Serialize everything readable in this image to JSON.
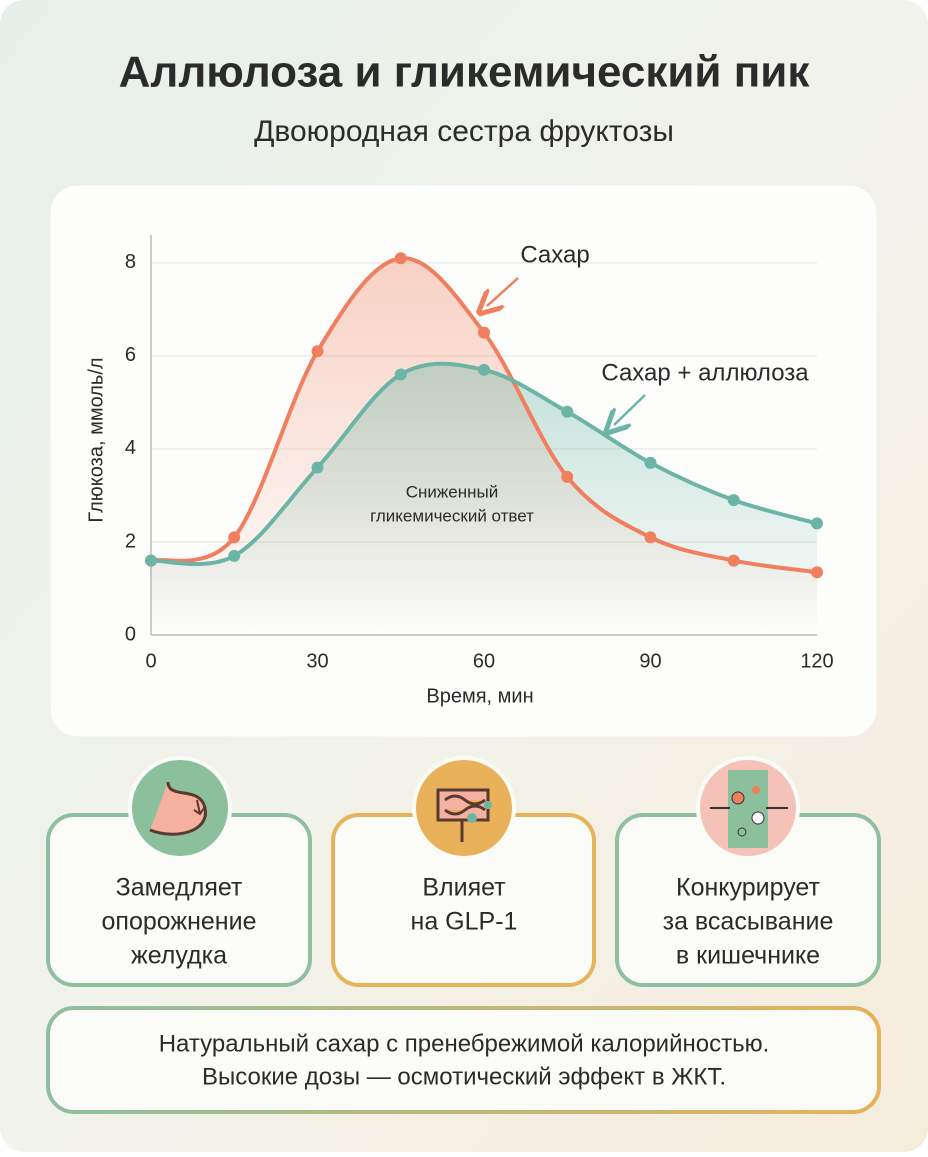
{
  "header": {
    "title": "Аллюлоза и гликемический пик",
    "subtitle": "Двоюродная сестра фруктозы"
  },
  "chart_data": {
    "type": "line",
    "x_label": "Время, мин",
    "y_label": "Глюкоза, ммоль/л",
    "x": [
      0,
      15,
      30,
      45,
      60,
      75,
      90,
      105,
      120
    ],
    "series": [
      {
        "name": "Сахар",
        "color": "#f07f5f",
        "values": [
          1.6,
          2.1,
          6.1,
          8.1,
          6.5,
          3.4,
          2.1,
          1.6,
          1.35
        ]
      },
      {
        "name": "Сахар + аллюлоза",
        "color": "#6cb5a6",
        "values": [
          1.6,
          1.7,
          3.6,
          5.6,
          5.7,
          4.8,
          3.7,
          2.9,
          2.4
        ]
      }
    ],
    "xlim": [
      0,
      120
    ],
    "xticks": [
      0,
      30,
      60,
      90,
      120
    ],
    "ylim": [
      0,
      8.6
    ],
    "yticks": [
      0,
      2,
      4,
      6,
      8
    ],
    "grid": true,
    "annotation": [
      "Сниженный",
      "гликемический ответ"
    ]
  },
  "cards": [
    {
      "lines": [
        "Замедляет",
        "опорожнение",
        "желудка"
      ]
    },
    {
      "lines": [
        "Влияет",
        "на GLP-1"
      ]
    },
    {
      "lines": [
        "Конкурирует",
        "за всасывание",
        "в кишечнике"
      ]
    }
  ],
  "footer": {
    "lines": [
      "Натуральный сахар с пренебрежимой калорийностью.",
      "Высокие дозы — осмотический эффект в ЖКТ."
    ]
  }
}
